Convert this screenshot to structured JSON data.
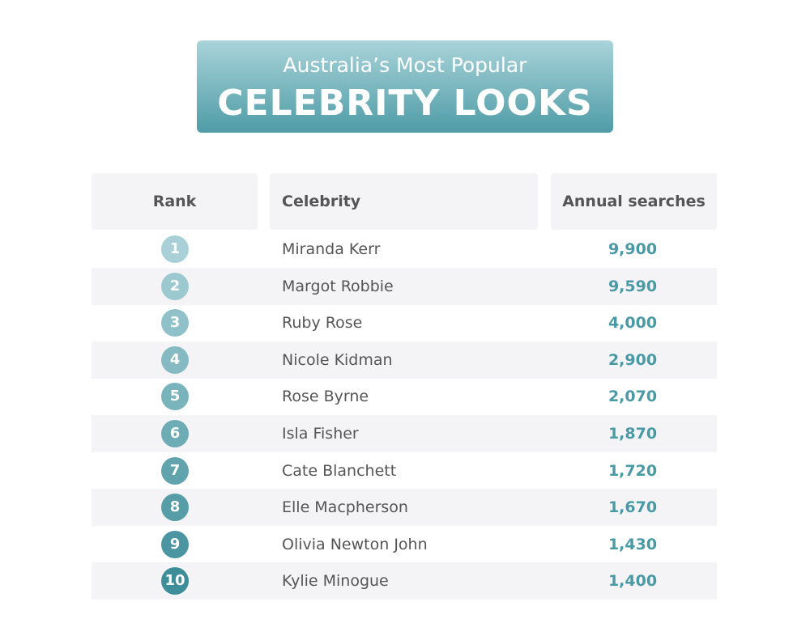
{
  "header": {
    "title_line1": "Australia’s Most Popular",
    "title_line2": "CELEBRITY LOOKS"
  },
  "table": {
    "columns": [
      "Rank",
      "Celebrity",
      "Annual searches"
    ],
    "rows": [
      [
        1,
        "Miranda Kerr",
        "9,900"
      ],
      [
        2,
        "Margot Robbie",
        "9,590"
      ],
      [
        3,
        "Ruby Rose",
        "4,000"
      ],
      [
        4,
        "Nicole Kidman",
        "2,900"
      ],
      [
        5,
        "Rose Byrne",
        "2,070"
      ],
      [
        6,
        "Isla Fisher",
        "1,870"
      ],
      [
        7,
        "Cate Blanchett",
        "1,720"
      ],
      [
        8,
        "Elle Macpherson",
        "1,670"
      ],
      [
        9,
        "Olivia Newton John",
        "1,430"
      ],
      [
        10,
        "Kylie Minogue",
        "1,400"
      ]
    ]
  }
}
